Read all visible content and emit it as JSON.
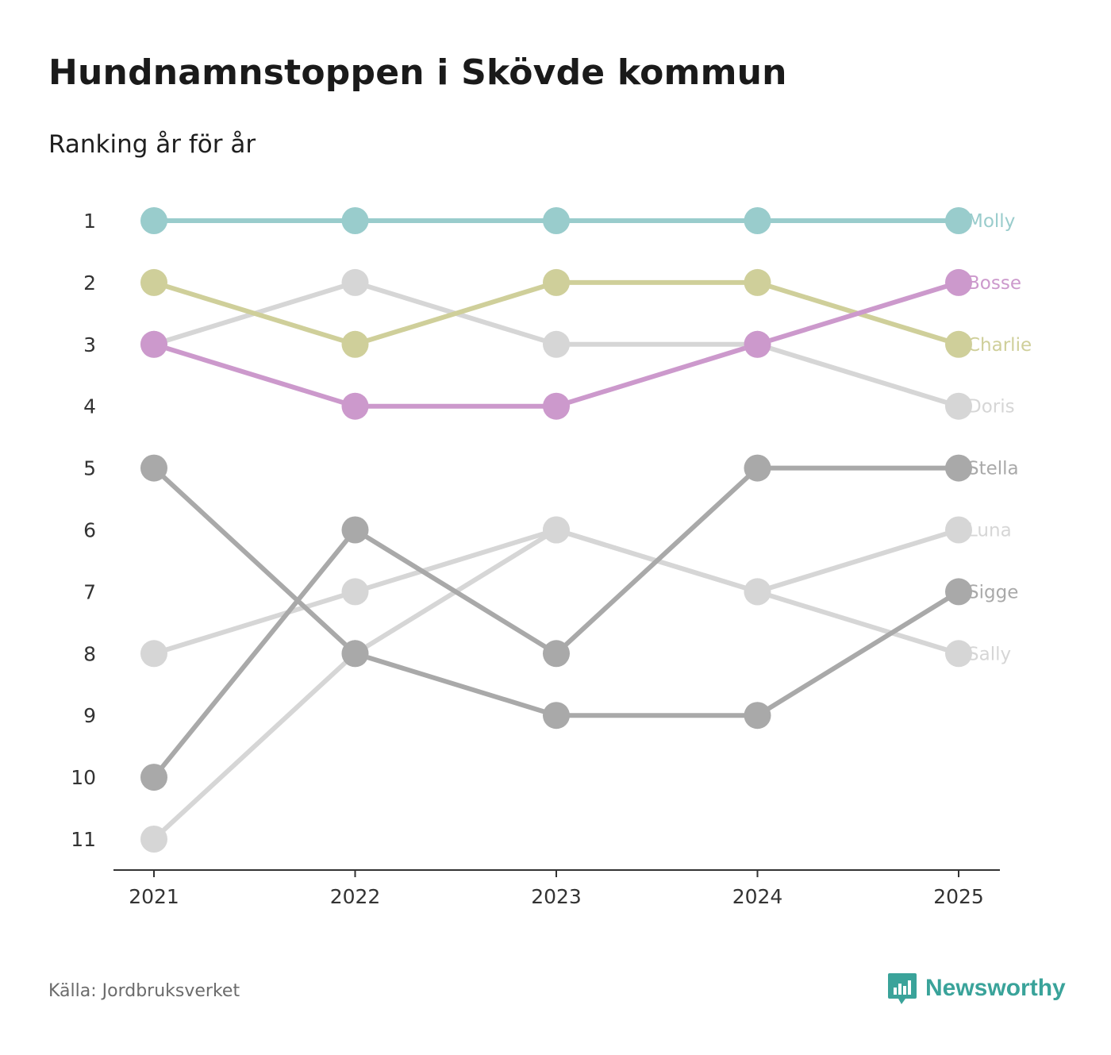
{
  "header": {
    "title": "Hundnamnstoppen i Skövde kommun",
    "subtitle": "Ranking år för år"
  },
  "footer": {
    "source": "Källa: Jordbruksverket",
    "brand": "Newsworthy",
    "brand_icon": "bar-chart-speech-bubble-icon",
    "brand_color": "#3aa39a"
  },
  "chart_data": {
    "type": "line",
    "title": "Hundnamnstoppen i Skövde kommun",
    "subtitle": "Ranking år för år",
    "xlabel": "",
    "ylabel": "",
    "x": [
      "2021",
      "2022",
      "2023",
      "2024",
      "2025"
    ],
    "y_ticks": [
      "1",
      "2",
      "3",
      "4",
      "5",
      "6",
      "7",
      "8",
      "9",
      "10",
      "11"
    ],
    "ylim": [
      1,
      11
    ],
    "y_inverted": true,
    "grid": false,
    "series": [
      {
        "name": "Sally",
        "color": "#d6d6d6",
        "values": [
          11,
          8,
          6,
          7,
          8
        ]
      },
      {
        "name": "Luna",
        "color": "#d6d6d6",
        "values": [
          8,
          7,
          6,
          7,
          6
        ]
      },
      {
        "name": "Doris",
        "color": "#d6d6d6",
        "values": [
          3,
          2,
          3,
          3,
          4
        ]
      },
      {
        "name": "Sigge",
        "color": "#a9a9a9",
        "values": [
          5,
          8,
          9,
          9,
          7
        ]
      },
      {
        "name": "Stella",
        "color": "#a9a9a9",
        "values": [
          10,
          6,
          8,
          5,
          5
        ]
      },
      {
        "name": "Charlie",
        "color": "#cfcf9a",
        "values": [
          2,
          3,
          2,
          2,
          3
        ]
      },
      {
        "name": "Bosse",
        "color": "#cc99cc",
        "values": [
          3,
          4,
          4,
          3,
          2
        ]
      },
      {
        "name": "Molly",
        "color": "#99cccc",
        "values": [
          1,
          1,
          1,
          1,
          1
        ]
      }
    ]
  }
}
